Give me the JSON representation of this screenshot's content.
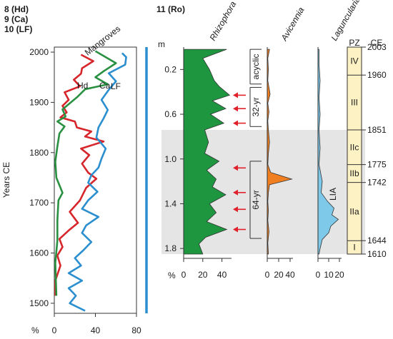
{
  "chart_data": [
    {
      "type": "line",
      "panel": "mangroves",
      "heading_lines": [
        "8 (Hd)",
        "9 (Ca)",
        "10 (LF)"
      ],
      "title": "Mangroves",
      "ylabel": "Years CE",
      "xlabel": "%",
      "ylim": [
        1480,
        2010
      ],
      "xlim": [
        0,
        80
      ],
      "y_ticks": [
        1500,
        1600,
        1700,
        1800,
        1900,
        2000
      ],
      "x_ticks": [
        0,
        40,
        80
      ],
      "series": [
        {
          "name": "Hd",
          "color": "#d7262b",
          "points": [
            [
              26,
              1995
            ],
            [
              38,
              1982
            ],
            [
              27,
              1968
            ],
            [
              26,
              1957
            ],
            [
              19,
              1945
            ],
            [
              25,
              1932
            ],
            [
              10,
              1920
            ],
            [
              14,
              1905
            ],
            [
              8,
              1893
            ],
            [
              12,
              1880
            ],
            [
              6,
              1870
            ],
            [
              20,
              1862
            ],
            [
              22,
              1850
            ],
            [
              36,
              1842
            ],
            [
              30,
              1832
            ],
            [
              48,
              1822
            ],
            [
              26,
              1808
            ],
            [
              34,
              1795
            ],
            [
              27,
              1778
            ],
            [
              33,
              1760
            ],
            [
              41,
              1748
            ],
            [
              31,
              1730
            ],
            [
              25,
              1705
            ],
            [
              15,
              1682
            ],
            [
              23,
              1660
            ],
            [
              14,
              1645
            ],
            [
              5,
              1628
            ],
            [
              8,
              1612
            ],
            [
              3,
              1595
            ],
            [
              6,
              1575
            ],
            [
              1,
              1545
            ],
            [
              1,
              1515
            ]
          ]
        },
        {
          "name": "Ca",
          "color": "#2b9142",
          "points": [
            [
              40,
              2002
            ],
            [
              60,
              1978
            ],
            [
              48,
              1962
            ],
            [
              40,
              1950
            ],
            [
              52,
              1936
            ],
            [
              30,
              1926
            ],
            [
              22,
              1910
            ],
            [
              15,
              1898
            ],
            [
              8,
              1886
            ],
            [
              11,
              1872
            ],
            [
              3,
              1862
            ],
            [
              10,
              1852
            ],
            [
              5,
              1838
            ],
            [
              3,
              1812
            ],
            [
              1,
              1782
            ],
            [
              2,
              1750
            ],
            [
              8,
              1720
            ],
            [
              4,
              1705
            ],
            [
              3,
              1665
            ],
            [
              3,
              1625
            ],
            [
              1,
              1580
            ],
            [
              2,
              1515
            ]
          ]
        },
        {
          "name": "LF",
          "color": "#2b8fcf",
          "points": [
            [
              66,
              1998
            ],
            [
              70,
              1990
            ],
            [
              69,
              1975
            ],
            [
              53,
              1958
            ],
            [
              60,
              1942
            ],
            [
              53,
              1925
            ],
            [
              46,
              1905
            ],
            [
              52,
              1885
            ],
            [
              48,
              1868
            ],
            [
              43,
              1850
            ],
            [
              41,
              1830
            ],
            [
              50,
              1808
            ],
            [
              46,
              1788
            ],
            [
              43,
              1770
            ],
            [
              36,
              1755
            ],
            [
              33,
              1740
            ],
            [
              42,
              1722
            ],
            [
              33,
              1705
            ],
            [
              27,
              1688
            ],
            [
              43,
              1672
            ],
            [
              31,
              1655
            ],
            [
              27,
              1640
            ],
            [
              36,
              1622
            ],
            [
              28,
              1605
            ],
            [
              20,
              1590
            ],
            [
              26,
              1575
            ],
            [
              14,
              1560
            ],
            [
              27,
              1545
            ],
            [
              14,
              1530
            ],
            [
              21,
              1515
            ],
            [
              15,
              1500
            ],
            [
              30,
              1485
            ]
          ]
        }
      ],
      "legend_labels": [
        "Hd",
        "Ca",
        "LF"
      ]
    },
    {
      "type": "area",
      "panel": "pollen",
      "heading": "11 (Ro)",
      "depth_unit": "m",
      "ylim": [
        0.0,
        1.85
      ],
      "y_ticks": [
        "0.2",
        "0.6",
        "1.0",
        "1.4",
        "1.8"
      ],
      "y_tick_values": [
        0.2,
        0.6,
        1.0,
        1.4,
        1.8
      ],
      "x_unit": "%",
      "lia_band": [
        0.74,
        1.85
      ],
      "arrow_depths": [
        0.43,
        0.55,
        0.68,
        1.08,
        1.3,
        1.45,
        1.63
      ],
      "brackets": [
        {
          "label": "acyclic",
          "range": [
            0.02,
            0.33
          ]
        },
        {
          "label": "32-yr",
          "range": [
            0.36,
            0.71
          ]
        },
        {
          "label": "64-yr",
          "range": [
            1.02,
            1.71
          ]
        }
      ],
      "taxa": [
        {
          "name": "Rhizophora",
          "color": "#1e9640",
          "max": 50,
          "ticks": [
            0,
            20,
            40
          ],
          "profile": [
            [
              0.02,
              45
            ],
            [
              0.1,
              20
            ],
            [
              0.2,
              27
            ],
            [
              0.3,
              32
            ],
            [
              0.35,
              37
            ],
            [
              0.43,
              48
            ],
            [
              0.48,
              30
            ],
            [
              0.55,
              44
            ],
            [
              0.6,
              28
            ],
            [
              0.68,
              42
            ],
            [
              0.74,
              22
            ],
            [
              0.85,
              26
            ],
            [
              0.95,
              22
            ],
            [
              1.02,
              37
            ],
            [
              1.1,
              24
            ],
            [
              1.18,
              34
            ],
            [
              1.25,
              30
            ],
            [
              1.32,
              44
            ],
            [
              1.4,
              27
            ],
            [
              1.48,
              34
            ],
            [
              1.56,
              24
            ],
            [
              1.63,
              45
            ],
            [
              1.7,
              23
            ],
            [
              1.76,
              16
            ],
            [
              1.85,
              20
            ]
          ]
        },
        {
          "name": "Avicennia",
          "color": "#f07f22",
          "max": 45,
          "ticks": [
            0,
            20,
            40
          ],
          "profile": [
            [
              0.02,
              4
            ],
            [
              0.1,
              1
            ],
            [
              0.2,
              2
            ],
            [
              0.3,
              1
            ],
            [
              0.42,
              5
            ],
            [
              0.5,
              1
            ],
            [
              0.58,
              3
            ],
            [
              0.66,
              1
            ],
            [
              0.74,
              2
            ],
            [
              0.85,
              4
            ],
            [
              0.95,
              2
            ],
            [
              1.05,
              1
            ],
            [
              1.12,
              6
            ],
            [
              1.18,
              43
            ],
            [
              1.23,
              4
            ],
            [
              1.3,
              2
            ],
            [
              1.38,
              1
            ],
            [
              1.46,
              2
            ],
            [
              1.55,
              1
            ],
            [
              1.65,
              3
            ],
            [
              1.75,
              1
            ],
            [
              1.85,
              2
            ]
          ]
        },
        {
          "name": "Laguncularia",
          "color": "#7ec8ea",
          "max": 22,
          "ticks": [
            0,
            10,
            20
          ],
          "profile": [
            [
              0.02,
              1
            ],
            [
              0.15,
              1
            ],
            [
              0.3,
              2
            ],
            [
              0.45,
              1
            ],
            [
              0.6,
              2
            ],
            [
              0.74,
              1
            ],
            [
              0.9,
              2
            ],
            [
              1.05,
              1
            ],
            [
              1.2,
              4
            ],
            [
              1.3,
              3
            ],
            [
              1.38,
              9
            ],
            [
              1.44,
              15
            ],
            [
              1.5,
              13
            ],
            [
              1.54,
              19
            ],
            [
              1.6,
              12
            ],
            [
              1.66,
              10
            ],
            [
              1.72,
              4
            ],
            [
              1.8,
              2
            ],
            [
              1.85,
              1
            ]
          ]
        }
      ],
      "pz": {
        "title": "PZ",
        "ce_title": "CE",
        "zones": [
          {
            "label": "IV",
            "from": 0.0,
            "to": 0.25
          },
          {
            "label": "III",
            "from": 0.25,
            "to": 0.74
          },
          {
            "label": "IIc",
            "from": 0.74,
            "to": 1.05
          },
          {
            "label": "IIb",
            "from": 1.05,
            "to": 1.21
          },
          {
            "label": "IIa",
            "from": 1.21,
            "to": 1.73
          },
          {
            "label": "I",
            "from": 1.73,
            "to": 1.85
          }
        ],
        "ce_marks": [
          {
            "label": "2003",
            "depth": 0.0
          },
          {
            "label": "1960",
            "depth": 0.25
          },
          {
            "label": "1851",
            "depth": 0.74
          },
          {
            "label": "1775",
            "depth": 1.05
          },
          {
            "label": "1742",
            "depth": 1.21
          },
          {
            "label": "1644",
            "depth": 1.73
          },
          {
            "label": "1610",
            "depth": 1.85
          }
        ],
        "lia_label": "LIA"
      }
    }
  ]
}
